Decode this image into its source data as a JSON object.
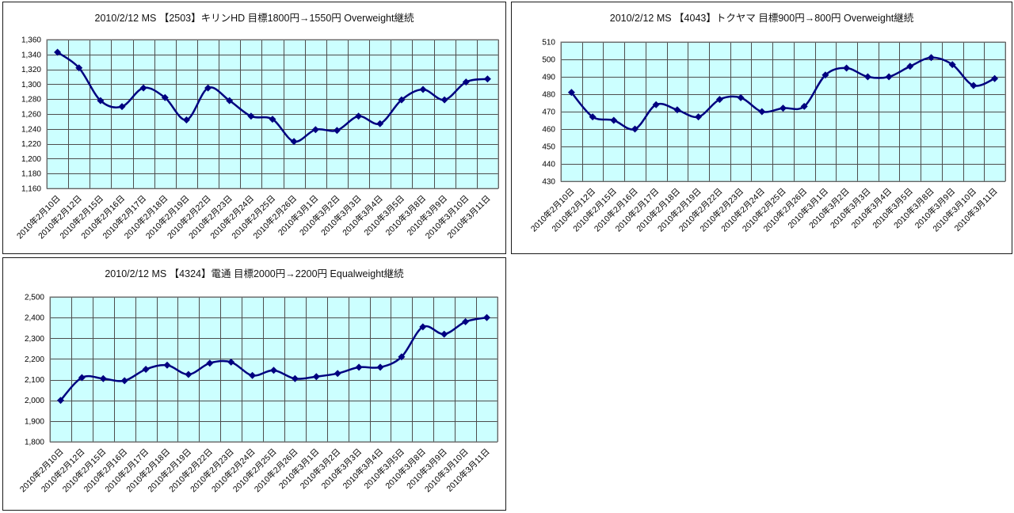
{
  "colors": {
    "accent_line": "#000080",
    "plot_background": "#ccffff",
    "gridline": "#4d4d4d",
    "plot_border": "#808080",
    "chart_border": "#1a1a1a",
    "page_background": "#ffffff",
    "text": "#000000"
  },
  "chart_data": [
    {
      "type": "line",
      "title": "2010/2/12 MS 【2503】キリンHD 目標1800円→1550円 Overweight継続",
      "categories": [
        "2010年2月10日",
        "2010年2月12日",
        "2010年2月15日",
        "2010年2月16日",
        "2010年2月17日",
        "2010年2月18日",
        "2010年2月19日",
        "2010年2月22日",
        "2010年2月23日",
        "2010年2月24日",
        "2010年2月25日",
        "2010年2月26日",
        "2010年3月1日",
        "2010年3月2日",
        "2010年3月3日",
        "2010年3月4日",
        "2010年3月5日",
        "2010年3月8日",
        "2010年3月9日",
        "2010年3月10日",
        "2010年3月11日"
      ],
      "values": [
        1343,
        1322,
        1278,
        1270,
        1295,
        1282,
        1252,
        1295,
        1278,
        1257,
        1253,
        1223,
        1239,
        1238,
        1257,
        1247,
        1279,
        1293,
        1279,
        1303,
        1307
      ],
      "ylim": [
        1160,
        1360
      ],
      "ytick_step": 20,
      "ytick_labels": [
        "1,160",
        "1,180",
        "1,200",
        "1,220",
        "1,240",
        "1,260",
        "1,280",
        "1,300",
        "1,320",
        "1,340",
        "1,360"
      ],
      "xlabel": "",
      "ylabel": "",
      "grid": true,
      "legend": "none",
      "marker": "diamond",
      "smooth": true
    },
    {
      "type": "line",
      "title": "2010/2/12 MS 【4043】トクヤマ 目標900円→800円 Overweight継続",
      "categories": [
        "2010年2月10日",
        "2010年2月12日",
        "2010年2月15日",
        "2010年2月16日",
        "2010年2月17日",
        "2010年2月18日",
        "2010年2月19日",
        "2010年2月22日",
        "2010年2月23日",
        "2010年2月24日",
        "2010年2月25日",
        "2010年2月26日",
        "2010年3月1日",
        "2010年3月2日",
        "2010年3月3日",
        "2010年3月4日",
        "2010年3月5日",
        "2010年3月8日",
        "2010年3月9日",
        "2010年3月10日",
        "2010年3月11日"
      ],
      "values": [
        481,
        467,
        465,
        460,
        474,
        471,
        467,
        477,
        478,
        470,
        472,
        473,
        491,
        495,
        490,
        490,
        496,
        501,
        497,
        485,
        489
      ],
      "ylim": [
        430,
        510
      ],
      "ytick_step": 10,
      "ytick_labels": [
        "430",
        "440",
        "450",
        "460",
        "470",
        "480",
        "490",
        "500",
        "510"
      ],
      "xlabel": "",
      "ylabel": "",
      "grid": true,
      "legend": "none",
      "marker": "diamond",
      "smooth": true
    },
    {
      "type": "line",
      "title": "2010/2/12 MS 【4324】電通 目標2000円→2200円 Equalweight継続",
      "categories": [
        "2010年2月10日",
        "2010年2月12日",
        "2010年2月15日",
        "2010年2月16日",
        "2010年2月17日",
        "2010年2月18日",
        "2010年2月19日",
        "2010年2月22日",
        "2010年2月23日",
        "2010年2月24日",
        "2010年2月25日",
        "2010年2月26日",
        "2010年3月1日",
        "2010年3月2日",
        "2010年3月3日",
        "2010年3月4日",
        "2010年3月5日",
        "2010年3月8日",
        "2010年3月9日",
        "2010年3月10日",
        "2010年3月11日"
      ],
      "values": [
        2000,
        2110,
        2105,
        2095,
        2150,
        2170,
        2125,
        2180,
        2185,
        2120,
        2145,
        2105,
        2115,
        2130,
        2160,
        2160,
        2210,
        2355,
        2320,
        2380,
        2400
      ],
      "ylim": [
        1800,
        2500
      ],
      "ytick_step": 100,
      "ytick_labels": [
        "1,800",
        "1,900",
        "2,000",
        "2,100",
        "2,200",
        "2,300",
        "2,400",
        "2,500"
      ],
      "xlabel": "",
      "ylabel": "",
      "grid": true,
      "legend": "none",
      "marker": "diamond",
      "smooth": true
    }
  ]
}
